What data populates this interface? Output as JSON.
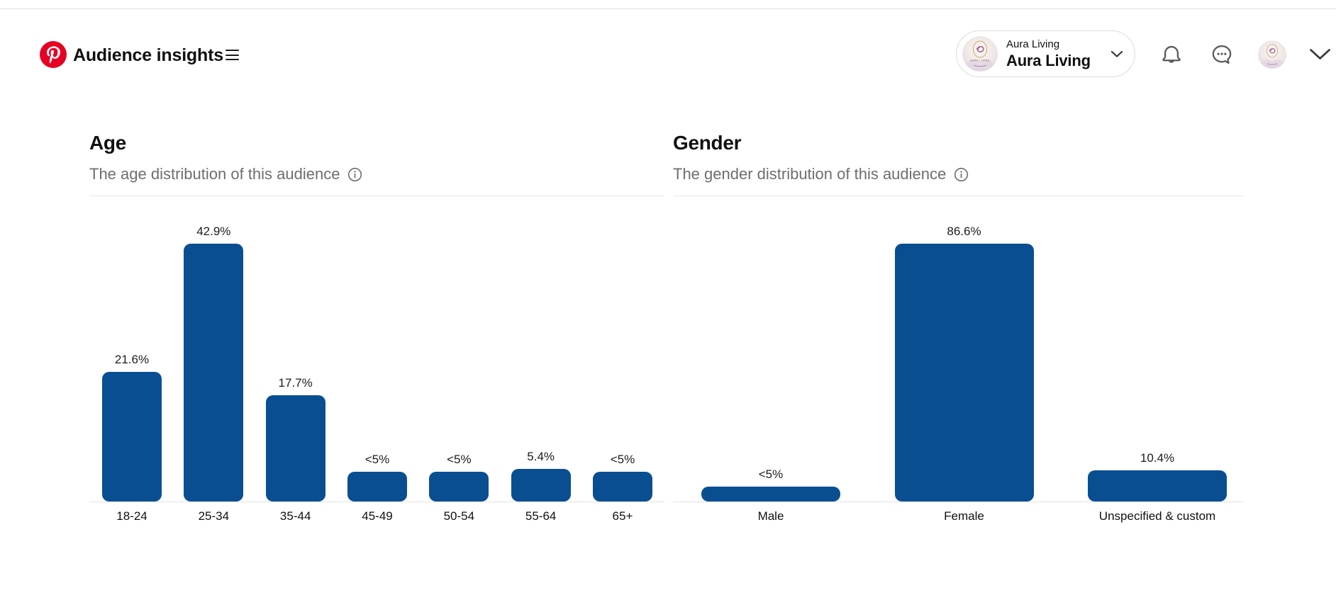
{
  "header": {
    "app_title": "Audience insights",
    "account_switcher": {
      "business_name": "Aura Living",
      "profile_name": "Aura Living",
      "avatar_text": "AURA LIVING"
    },
    "icons": {
      "menu": "hamburger-icon",
      "notifications": "bell-icon",
      "messages": "chat-bubble-icon",
      "profile": "avatar",
      "account_expand": "chevron-down-icon",
      "header_expand": "chevron-down-icon",
      "chart_info": "info-icon"
    }
  },
  "colors": {
    "bar_blue": "#0a4e92",
    "pinterest_red": "#e60023",
    "subtitle_gray": "#6e6e6e"
  },
  "chart_data": [
    {
      "type": "bar",
      "title": "Age",
      "subtitle": "The age distribution of this audience",
      "categories": [
        "18-24",
        "25-34",
        "35-44",
        "45-49",
        "50-54",
        "55-64",
        "65+"
      ],
      "values": [
        21.6,
        42.9,
        17.7,
        5,
        5,
        5.4,
        5
      ],
      "value_labels": [
        "21.6%",
        "42.9%",
        "17.7%",
        "<5%",
        "<5%",
        "5.4%",
        "<5%"
      ],
      "xlabel": "",
      "ylabel": "",
      "ylim": [
        0,
        42.9
      ],
      "grid": false,
      "legend": "none"
    },
    {
      "type": "bar",
      "title": "Gender",
      "subtitle": "The gender distribution of this audience",
      "categories": [
        "Male",
        "Female",
        "Unspecified & custom"
      ],
      "values": [
        5,
        86.6,
        10.4
      ],
      "value_labels": [
        "<5%",
        "86.6%",
        "10.4%"
      ],
      "xlabel": "",
      "ylabel": "",
      "ylim": [
        0,
        86.6
      ],
      "grid": false,
      "legend": "none"
    }
  ]
}
